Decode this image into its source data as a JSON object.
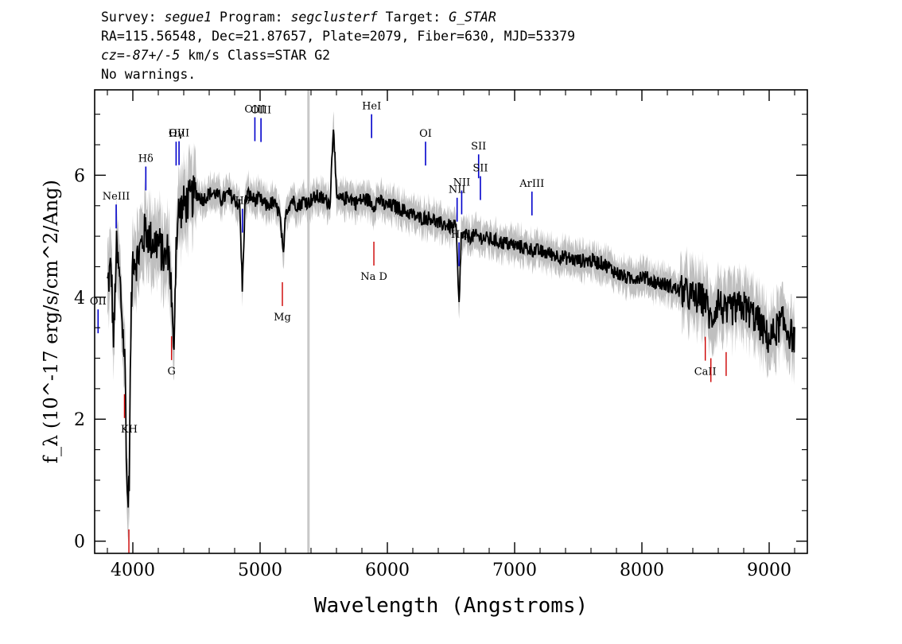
{
  "header": {
    "line1": {
      "survey_label": "Survey:",
      "survey": "segue1",
      "program_label": "Program:",
      "program": "segclusterf",
      "target_label": "Target:",
      "target": "G_STAR"
    },
    "line2": "RA=115.56548, Dec=21.87657, Plate=2079, Fiber=630, MJD=53379",
    "line3": {
      "cz": "cz=-87+/-5",
      "rest": " km/s Class=STAR G2"
    },
    "line4": "No warnings."
  },
  "colors": {
    "flux": "#000000",
    "error": "#bfbfbf",
    "emission": "#0000cc",
    "absorption": "#cc0000",
    "gap": "#c8c8c8"
  },
  "chart_data": {
    "type": "line",
    "xlabel": "Wavelength (Angstroms)",
    "ylabel": "f_λ (10^-17 erg/s/cm^2/Ang)",
    "xlim": [
      3700,
      9300
    ],
    "ylim": [
      -0.2,
      7.4
    ],
    "xticks": [
      4000,
      5000,
      6000,
      7000,
      8000,
      9000
    ],
    "yticks": [
      0,
      2,
      4,
      6
    ],
    "gap_line_x": 5380,
    "series": [
      {
        "x": [
          3800,
          3830,
          3850,
          3870,
          3900,
          3920,
          3940,
          3955,
          3970,
          3985,
          4000,
          4030,
          4060,
          4100,
          4150,
          4200,
          4250,
          4280,
          4300,
          4320,
          4340,
          4360,
          4400,
          4450,
          4500,
          4550,
          4600,
          4650,
          4700,
          4750,
          4800,
          4840,
          4861,
          4880,
          4900,
          4950,
          5000,
          5050,
          5100,
          5150,
          5170,
          5183,
          5200,
          5250,
          5300,
          5350,
          5380,
          5400,
          5450,
          5500,
          5550,
          5577,
          5600,
          5650,
          5700,
          5750,
          5800,
          5850,
          5890,
          5930,
          5980,
          6050,
          6100,
          6150,
          6200,
          6250,
          6300,
          6350,
          6400,
          6450,
          6500,
          6540,
          6563,
          6580,
          6620,
          6700,
          6800,
          6900,
          7000,
          7100,
          7200,
          7300,
          7400,
          7500,
          7600,
          7700,
          7800,
          7900,
          8000,
          8100,
          8200,
          8300,
          8400,
          8500,
          8542,
          8600,
          8662,
          8700,
          8800,
          8900,
          9000,
          9100,
          9200
        ],
        "y": [
          4.2,
          4.5,
          3.2,
          4.8,
          4.2,
          3.5,
          2.8,
          0.7,
          0.8,
          3.5,
          4.7,
          4.6,
          4.8,
          5.1,
          4.9,
          4.9,
          4.6,
          4.8,
          4.2,
          3.0,
          4.9,
          5.4,
          5.5,
          5.6,
          5.7,
          5.6,
          5.7,
          5.7,
          5.6,
          5.7,
          5.6,
          5.5,
          4.1,
          5.5,
          5.7,
          5.6,
          5.6,
          5.5,
          5.55,
          5.4,
          5.0,
          4.6,
          5.4,
          5.6,
          5.5,
          5.6,
          5.55,
          5.6,
          5.65,
          5.6,
          5.55,
          6.9,
          5.6,
          5.6,
          5.65,
          5.55,
          5.6,
          5.6,
          5.5,
          5.6,
          5.5,
          5.5,
          5.45,
          5.4,
          5.35,
          5.3,
          5.3,
          5.3,
          5.2,
          5.2,
          5.15,
          5.15,
          3.8,
          5.0,
          5.0,
          5.0,
          4.95,
          4.9,
          4.85,
          4.8,
          4.75,
          4.7,
          4.65,
          4.6,
          4.6,
          4.55,
          4.4,
          4.3,
          4.35,
          4.25,
          4.2,
          4.1,
          4.0,
          3.95,
          3.6,
          3.95,
          3.7,
          3.8,
          3.85,
          3.65,
          3.3,
          3.6,
          3.3
        ]
      }
    ],
    "emission_lines": [
      {
        "label": "OII",
        "x": 3727
      },
      {
        "label": "NeIII",
        "x": 3869
      },
      {
        "label": "Hδ",
        "x": 4102
      },
      {
        "label": "Hγ",
        "x": 4340
      },
      {
        "label": "OIII",
        "x": 4363
      },
      {
        "label": "Hβ",
        "x": 4861
      },
      {
        "label": "OIII",
        "x": 4959
      },
      {
        "label": "OIII",
        "x": 5007
      },
      {
        "label": "HeI",
        "x": 5876
      },
      {
        "label": "OI",
        "x": 6300
      },
      {
        "label": "NII",
        "x": 6548
      },
      {
        "label": "Hα",
        "x": 6563
      },
      {
        "label": "NII",
        "x": 6584
      },
      {
        "label": "SII",
        "x": 6717
      },
      {
        "label": "SII",
        "x": 6731
      },
      {
        "label": "ArIII",
        "x": 7136
      }
    ],
    "absorption_lines": [
      {
        "label": "KH",
        "x": 3934
      },
      {
        "label": "KH",
        "x": 3969
      },
      {
        "label": "G",
        "x": 4304
      },
      {
        "label": "Mg",
        "x": 5175
      },
      {
        "label": "Na D",
        "x": 5894
      },
      {
        "label": "CaII",
        "x": 8498
      },
      {
        "label": "CaII",
        "x": 8542
      },
      {
        "label": "CaII",
        "x": 8662
      }
    ]
  }
}
